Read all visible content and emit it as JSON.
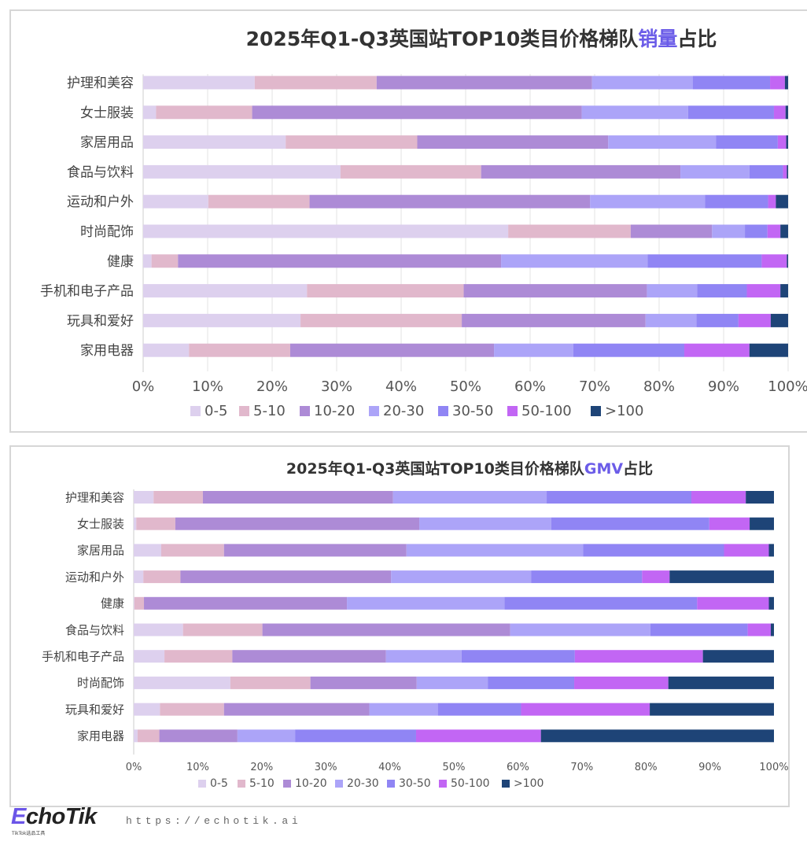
{
  "series_names": [
    "0-5",
    "5-10",
    "10-20",
    "20-30",
    "30-50",
    "50-100",
    ">100"
  ],
  "colors": [
    "#ddd0ee",
    "#e1b8cc",
    "#ad8bd6",
    "#aca4f8",
    "#9085f4",
    "#c266f4",
    "#1e4477"
  ],
  "footer": {
    "logo": "EchoTik",
    "logo_sub": "TikTok选品工具",
    "url": "https://echotik.ai"
  },
  "chart_data": [
    {
      "type": "bar",
      "orientation": "horizontal-stacked-100",
      "title_parts": [
        "2025年Q1-Q3英国站TOP10类目价格梯队",
        "销量",
        "占比"
      ],
      "highlight_color": "#6b5ce8",
      "xlim": [
        0,
        100
      ],
      "ticks": [
        "0%",
        "10%",
        "20%",
        "30%",
        "40%",
        "50%",
        "60%",
        "70%",
        "80%",
        "90%",
        "100%"
      ],
      "legend_position": "bottom",
      "grid": true,
      "categories": [
        "护理和美容",
        "女士服装",
        "家居用品",
        "食品与饮料",
        "运动和户外",
        "时尚配饰",
        "健康",
        "手机和电子产品",
        "玩具和爱好",
        "家用电器"
      ],
      "values": [
        [
          17.3,
          18.9,
          33.4,
          15.6,
          12.0,
          2.3,
          0.5
        ],
        [
          2.0,
          14.9,
          51.1,
          16.5,
          13.3,
          1.8,
          0.4
        ],
        [
          22.1,
          20.4,
          29.6,
          16.7,
          9.6,
          1.3,
          0.3
        ],
        [
          30.6,
          21.8,
          30.9,
          10.7,
          5.2,
          0.6,
          0.2
        ],
        [
          10.1,
          15.7,
          43.5,
          17.8,
          9.8,
          1.2,
          1.9
        ],
        [
          56.6,
          19.0,
          12.6,
          5.1,
          3.5,
          2.0,
          1.2
        ],
        [
          1.3,
          4.1,
          50.1,
          22.7,
          17.7,
          3.9,
          0.2
        ],
        [
          25.4,
          24.3,
          28.4,
          7.8,
          7.7,
          5.2,
          1.2
        ],
        [
          24.4,
          25.0,
          28.5,
          7.9,
          6.5,
          5.0,
          2.7
        ],
        [
          7.1,
          15.7,
          31.6,
          12.3,
          17.2,
          10.1,
          6.0
        ]
      ]
    },
    {
      "type": "bar",
      "orientation": "horizontal-stacked-100",
      "title_parts": [
        "2025年Q1-Q3英国站TOP10类目价格梯队",
        "GMV",
        "占比"
      ],
      "highlight_color": "#6b5ce8",
      "xlim": [
        0,
        100
      ],
      "ticks": [
        "0%",
        "10%",
        "20%",
        "30%",
        "40%",
        "50%",
        "60%",
        "70%",
        "80%",
        "90%",
        "100%"
      ],
      "legend_position": "bottom",
      "grid": false,
      "categories": [
        "护理和美容",
        "女士服装",
        "家居用品",
        "运动和户外",
        "健康",
        "食品与饮料",
        "手机和电子产品",
        "时尚配饰",
        "玩具和爱好",
        "家用电器"
      ],
      "values": [
        [
          3.1,
          7.7,
          29.7,
          24.0,
          22.6,
          8.5,
          4.4
        ],
        [
          0.4,
          6.1,
          38.1,
          20.6,
          24.7,
          6.3,
          3.8
        ],
        [
          4.3,
          9.8,
          28.5,
          27.6,
          22.0,
          7.0,
          0.8
        ],
        [
          1.5,
          5.8,
          32.9,
          21.9,
          17.3,
          4.3,
          16.3
        ],
        [
          0.1,
          1.5,
          31.7,
          24.6,
          30.1,
          11.2,
          0.8
        ],
        [
          7.7,
          12.4,
          38.7,
          21.9,
          15.2,
          3.6,
          0.5
        ],
        [
          4.8,
          10.6,
          24.0,
          11.8,
          17.7,
          20.0,
          11.1
        ],
        [
          15.1,
          12.5,
          16.6,
          11.1,
          13.5,
          14.7,
          16.5
        ],
        [
          4.1,
          10.0,
          22.7,
          10.7,
          13.0,
          20.1,
          19.4
        ],
        [
          0.6,
          3.4,
          12.2,
          9.0,
          18.9,
          19.5,
          36.4
        ]
      ]
    }
  ]
}
